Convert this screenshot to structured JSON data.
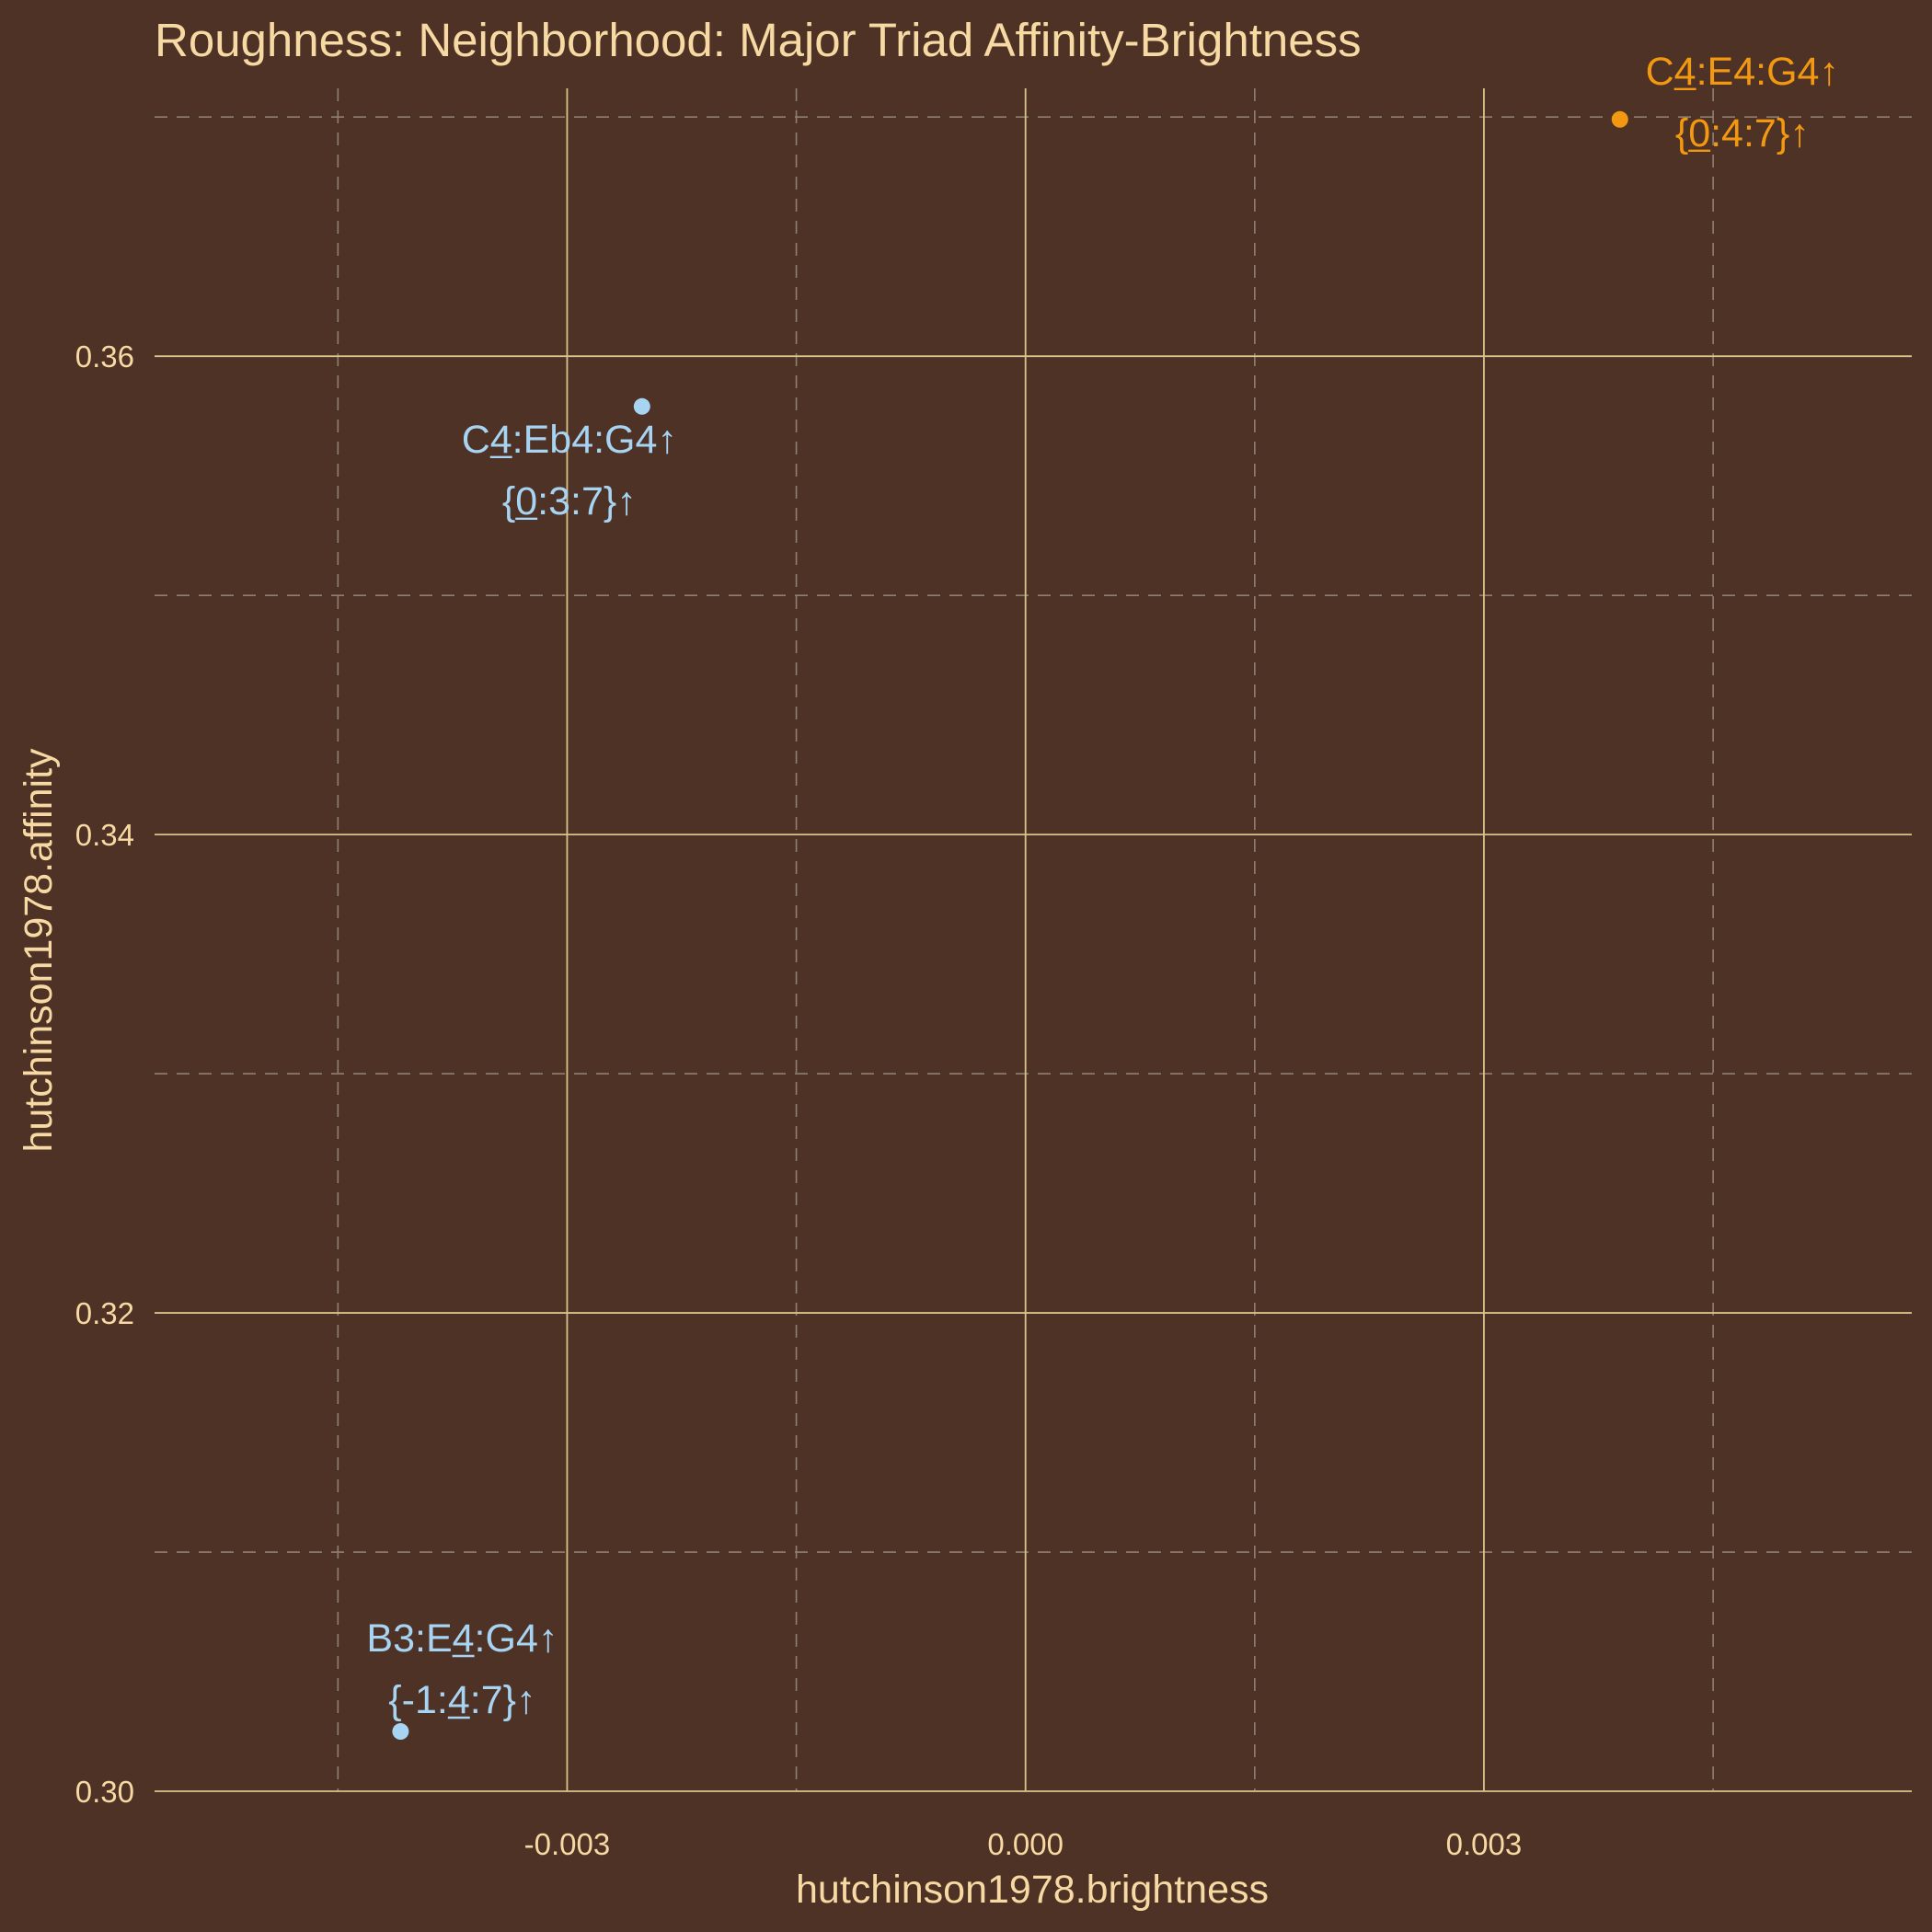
{
  "colors": {
    "background": "#4f3226",
    "text": "#f7d9a3",
    "grid_major": "#d8c48a",
    "grid_minor": "#8e7f73",
    "highlight": "#f29811",
    "neighbor": "#a7d4f2"
  },
  "chart_data": {
    "type": "scatter",
    "title": "Roughness: Neighborhood: Major Triad Affinity-Brightness",
    "xlabel": "hutchinson1978.brightness",
    "ylabel": "hutchinson1978.affinity",
    "xlim": [
      -0.0057,
      0.0058
    ],
    "ylim": [
      0.3,
      0.3712
    ],
    "x_ticks": [
      -0.003,
      0.0,
      0.003
    ],
    "x_tick_labels": [
      "-0.003",
      "0.000",
      "0.003"
    ],
    "y_ticks": [
      0.3,
      0.32,
      0.34,
      0.36
    ],
    "y_tick_labels": [
      "0.30",
      "0.32",
      "0.34",
      "0.36"
    ],
    "x_minor_ticks": [
      -0.0045,
      -0.0015,
      0.0015,
      0.0045
    ],
    "y_minor_ticks": [
      0.31,
      0.33,
      0.35,
      0.37
    ],
    "grid": true,
    "legend": "none",
    "points": [
      {
        "x": 0.00389,
        "y": 0.3699,
        "color": "#f29811",
        "label_line1": "C4:E4:G4↑",
        "label_line2": "{0:4:7}↑",
        "underlined_line1": "4",
        "underlined_line2": "0"
      },
      {
        "x": -0.00251,
        "y": 0.3579,
        "color": "#a7d4f2",
        "label_line1": "C4:Eb4:G4↑",
        "label_line2": "{0:3:7}↑",
        "underlined_line1": "4",
        "underlined_line2": "0"
      },
      {
        "x": -0.00409,
        "y": 0.3025,
        "color": "#a7d4f2",
        "label_line1": "B3:E4:G4↑",
        "label_line2": "{-1:4:7}↑",
        "underlined_line1": "4",
        "underlined_line2": "4"
      }
    ]
  }
}
